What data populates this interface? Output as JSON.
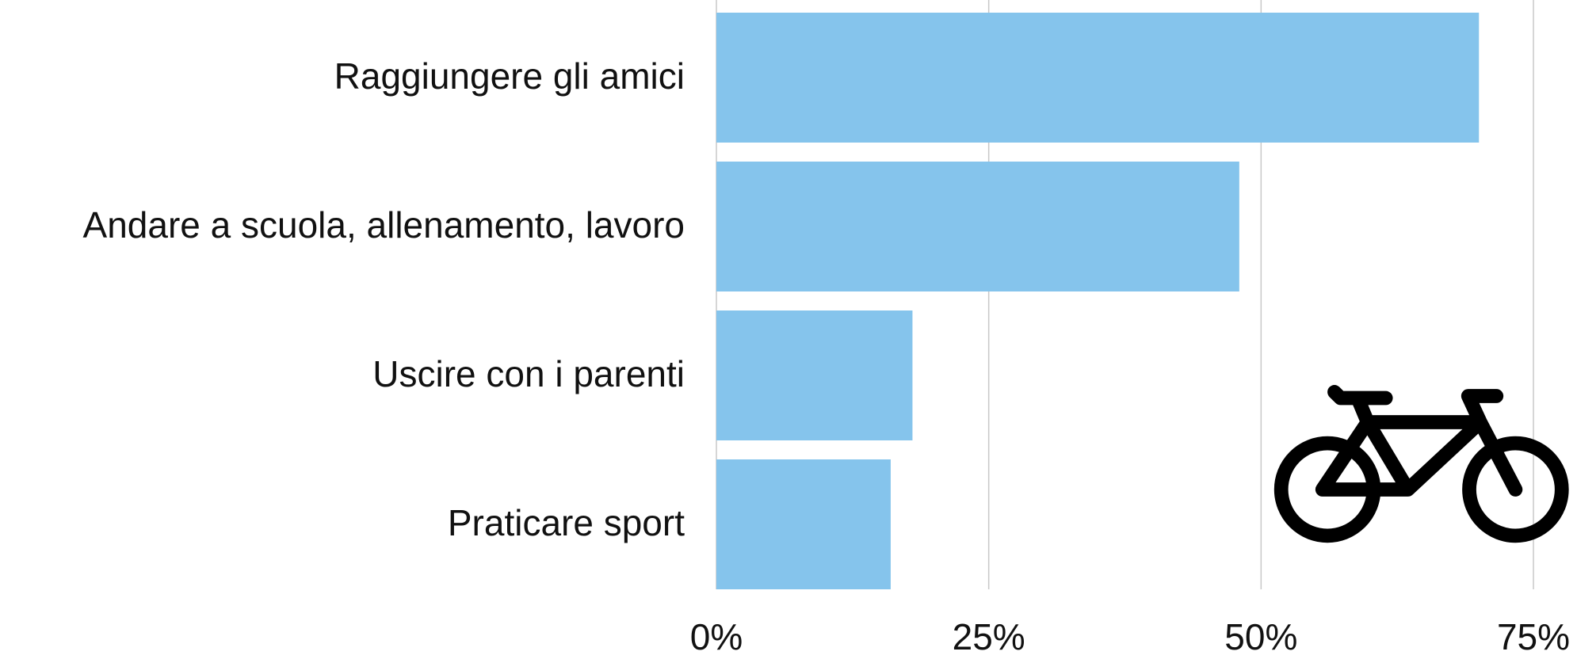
{
  "chart_data": {
    "type": "bar",
    "orientation": "horizontal",
    "categories": [
      "Raggiungere gli amici",
      "Andare a scuola, allenamento, lavoro",
      "Uscire con i parenti",
      "Praticare sport"
    ],
    "values": [
      70,
      48,
      18,
      16
    ],
    "color": "#85c4ec",
    "xlim": [
      0,
      75
    ],
    "xticks": [
      {
        "value": 0,
        "label": "0%"
      },
      {
        "value": 25,
        "label": "25%"
      },
      {
        "value": 50,
        "label": "50%"
      },
      {
        "value": 75,
        "label": "75%"
      }
    ],
    "grid": true
  }
}
